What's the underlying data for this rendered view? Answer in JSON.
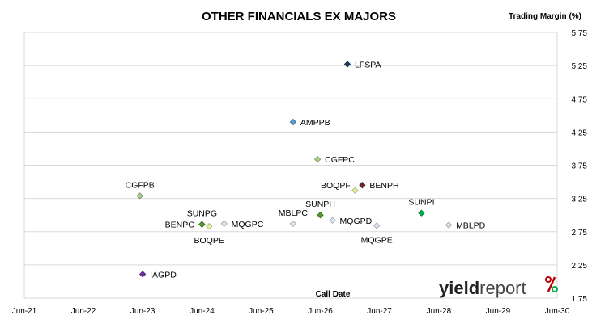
{
  "chart_data": {
    "type": "scatter",
    "title": "OTHER FINANCIALS EX MAJORS",
    "xlabel": "Call Date",
    "ylabel": "Trading Margin (%)",
    "x_ticks": [
      "Jun-21",
      "Jun-22",
      "Jun-23",
      "Jun-24",
      "Jun-25",
      "Jun-26",
      "Jun-27",
      "Jun-28",
      "Jun-29",
      "Jun-30"
    ],
    "xlim": [
      "2021-06",
      "2030-06"
    ],
    "ylim": [
      1.75,
      5.75
    ],
    "y_ticks": [
      "1.75",
      "2.25",
      "2.75",
      "3.25",
      "3.75",
      "4.25",
      "4.75",
      "5.25",
      "5.75"
    ],
    "y_axis_side": "right",
    "grid": "horizontal",
    "points": [
      {
        "label": "LFSPA",
        "x": "2026-11-15",
        "y": 5.27,
        "color": "#1f3864",
        "label_pos": "right"
      },
      {
        "label": "AMPPB",
        "x": "2025-12-15",
        "y": 4.4,
        "color": "#5b9bd5",
        "label_pos": "right"
      },
      {
        "label": "CGFPC",
        "x": "2026-05-15",
        "y": 3.84,
        "color": "#a9d18e",
        "label_pos": "right"
      },
      {
        "label": "CGFPB",
        "x": "2023-05-15",
        "y": 3.29,
        "color": "#a9d18e",
        "label_pos": "above"
      },
      {
        "label": "BENPH",
        "x": "2027-02-15",
        "y": 3.45,
        "color": "#6d2b2b",
        "label_pos": "right"
      },
      {
        "label": "BOQPF",
        "x": "2027-01-01",
        "y": 3.37,
        "color": "#e2f0a0",
        "label_pos": "above-left"
      },
      {
        "label": "SUNPI",
        "x": "2028-02-15",
        "y": 3.03,
        "color": "#00b050",
        "label_pos": "above"
      },
      {
        "label": "SUNPH",
        "x": "2026-06-01",
        "y": 3.0,
        "color": "#4e9a2a",
        "label_pos": "above"
      },
      {
        "label": "MBLPC",
        "x": "2025-12-15",
        "y": 2.87,
        "color": "#dce6f2",
        "label_pos": "above"
      },
      {
        "label": "MQGPD",
        "x": "2026-08-15",
        "y": 2.92,
        "color": "#dce6f2",
        "label_pos": "right"
      },
      {
        "label": "MQGPC",
        "x": "2024-10-15",
        "y": 2.87,
        "color": "#dce6f2",
        "label_pos": "right"
      },
      {
        "label": "SUNPG",
        "x": "2024-06-01",
        "y": 2.86,
        "color": "#4e9a2a",
        "label_pos": "above"
      },
      {
        "label": "BENPG",
        "x": "2024-06-01",
        "y": 2.86,
        "color": "#4e9a2a",
        "label_pos": "left"
      },
      {
        "label": "BOQPE",
        "x": "2024-07-15",
        "y": 2.83,
        "color": "#e2f0a0",
        "label_pos": "below"
      },
      {
        "label": "MQGPE",
        "x": "2027-05-15",
        "y": 2.84,
        "color": "#dce6f2",
        "label_pos": "below"
      },
      {
        "label": "MBLPD",
        "x": "2028-08-01",
        "y": 2.85,
        "color": "#dce6f2",
        "label_pos": "right"
      },
      {
        "label": "IAGPD",
        "x": "2023-06-01",
        "y": 2.11,
        "color": "#7030a0",
        "label_pos": "right"
      }
    ]
  },
  "branding": {
    "text_bold": "yield",
    "text_light": "report",
    "symbol": "%",
    "symbol_colors": [
      "#c00000",
      "#00b050"
    ]
  }
}
